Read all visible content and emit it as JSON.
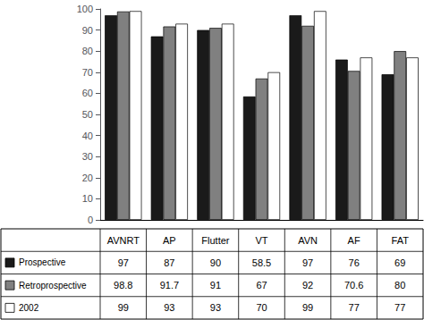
{
  "chart_data": {
    "type": "bar",
    "categories": [
      "AVNRT",
      "AP",
      "Flutter",
      "VT",
      "AVN",
      "AF",
      "FAT"
    ],
    "series": [
      {
        "name": "Prospective",
        "color": "#1a1a1a",
        "values": [
          97,
          87,
          90,
          58.5,
          97,
          76,
          69
        ]
      },
      {
        "name": "Retroprospective",
        "color": "#808080",
        "values": [
          98.8,
          91.7,
          91,
          67,
          92,
          70.6,
          80
        ]
      },
      {
        "name": "2002",
        "color": "#ffffff",
        "values": [
          99,
          93,
          93,
          70,
          99,
          77,
          77
        ]
      }
    ],
    "ylim": [
      0,
      100
    ],
    "yticks": [
      0,
      10,
      20,
      30,
      40,
      50,
      60,
      70,
      80,
      90,
      100
    ],
    "grid": false,
    "tick_labels": "y",
    "data_labels": true
  }
}
